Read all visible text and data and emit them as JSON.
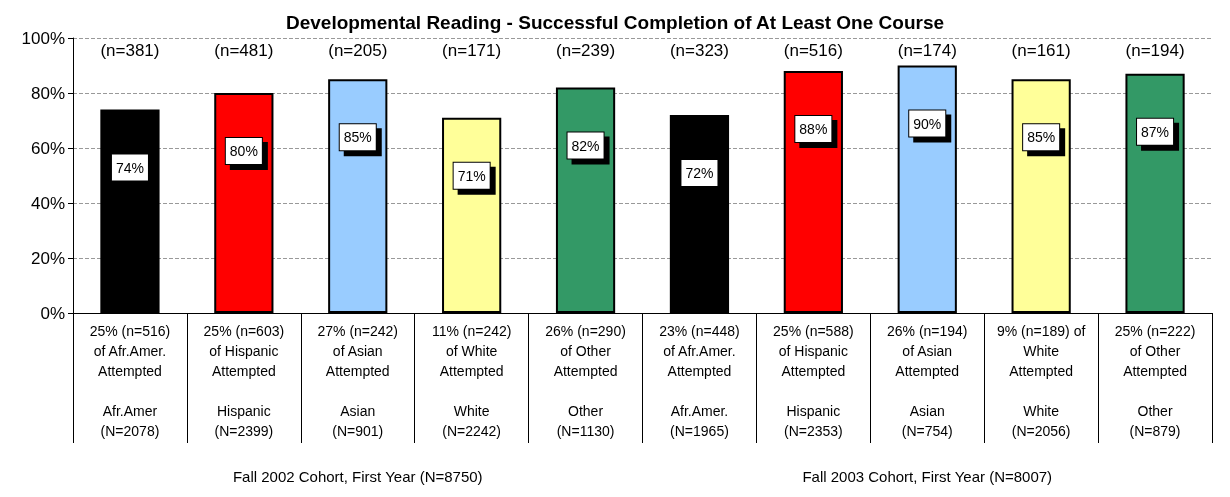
{
  "chart_data": {
    "type": "bar",
    "title": "Developmental Reading - Successful Completion of At Least One Course",
    "categories": [
      "25% (n=516)\nof Afr.Amer.\nAttempted\n\nAfr.Amer\n(N=2078)",
      "25% (n=603)\nof Hispanic\nAttempted\n\nHispanic\n(N=2399)",
      "27% (n=242)\nof Asian\nAttempted\n\nAsian\n(N=901)",
      "11% (n=242)\nof White\nAttempted\n\nWhite\n(N=2242)",
      "26% (n=290)\nof Other\nAttempted\n\nOther\n(N=1130)",
      "23% (n=448)\nof Afr.Amer.\nAttempted\n\nAfr.Amer.\n(N=1965)",
      "25% (n=588)\nof Hispanic\nAttempted\n\nHispanic\n(N=2353)",
      "26% (n=194)\nof Asian\nAttempted\n\nAsian\n(N=754)",
      "9% (n=189) of\nWhite\nAttempted\n\nWhite\n(N=2056)",
      "25% (n=222)\nof Other\nAttempted\n\nOther\n(N=879)"
    ],
    "values": [
      74,
      80,
      85,
      71,
      82,
      72,
      88,
      90,
      85,
      87
    ],
    "value_labels": [
      "74%",
      "80%",
      "85%",
      "71%",
      "82%",
      "72%",
      "88%",
      "90%",
      "85%",
      "87%"
    ],
    "colors": [
      "#000000",
      "#ff0000",
      "#99ccff",
      "#ffff99",
      "#339966",
      "#000000",
      "#ff0000",
      "#99ccff",
      "#ffff99",
      "#339966"
    ],
    "ylim": [
      0,
      100
    ],
    "yticks": [
      {
        "value": 0,
        "label": "0%"
      },
      {
        "value": 20,
        "label": "20%"
      },
      {
        "value": 40,
        "label": "40%"
      },
      {
        "value": 60,
        "label": "60%"
      },
      {
        "value": 80,
        "label": "80%"
      },
      {
        "value": 100,
        "label": "100%"
      }
    ],
    "grid": "y",
    "annotations": [
      "(n=381)",
      "(n=481)",
      "(n=205)",
      "(n=171)",
      "(n=239)",
      "(n=323)",
      "(n=516)",
      "(n=174)",
      "(n=161)",
      "(n=194)",
      "Fall 2002 Cohort, First Year (N=8750)",
      "Fall 2003 Cohort, First Year (N=8007)"
    ]
  }
}
